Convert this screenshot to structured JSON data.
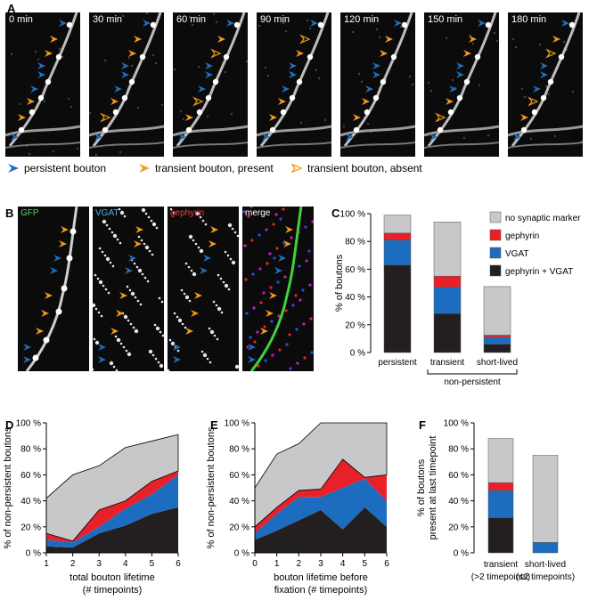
{
  "panel_letters": {
    "a": "A",
    "b": "B",
    "c": "C",
    "d": "D",
    "e": "E",
    "f": "F"
  },
  "panel_a": {
    "timepoints": [
      "0 min",
      "30 min",
      "60 min",
      "90 min",
      "120 min",
      "150 min",
      "180 min"
    ],
    "legend": [
      "persistent bouton",
      "transient bouton, present",
      "transient bouton, absent"
    ]
  },
  "panel_b": {
    "channels": [
      "GFP",
      "VGAT",
      "gephyrin",
      "merge"
    ]
  },
  "colors": {
    "persistent": "#1f6fbf",
    "transient": "#f39a1f",
    "gephyrin_vgat": "#231f20",
    "vgat": "#1c6cbf",
    "gephyrin": "#e8202a",
    "no_marker": "#c8c8ca"
  },
  "chart_data": [
    {
      "id": "C",
      "type": "bar",
      "stacked": true,
      "ylabel": "% of boutons",
      "ylim": [
        0,
        100
      ],
      "yticks": [
        "0 %",
        "20 %",
        "40 %",
        "60 %",
        "80 %",
        "100 %"
      ],
      "categories": [
        "persistent",
        "transient",
        "short-lived"
      ],
      "group_label": "non-persistent",
      "legend": [
        "no synaptic marker",
        "gephyrin",
        "VGAT",
        "gephyrin + VGAT"
      ],
      "series": [
        {
          "name": "gephyrin + VGAT",
          "values": [
            63,
            28,
            6
          ]
        },
        {
          "name": "VGAT",
          "values": [
            18,
            19,
            5
          ]
        },
        {
          "name": "gephyrin",
          "values": [
            5,
            8,
            1.5
          ]
        },
        {
          "name": "no synaptic marker",
          "values": [
            13,
            39,
            35
          ]
        }
      ]
    },
    {
      "id": "D",
      "type": "area",
      "stacked": true,
      "xlabel": "total bouton lifetime\n(# timepoints)",
      "xlabel_lines": [
        "total bouton lifetime",
        "(# timepoints)"
      ],
      "ylabel": "% of non-persistent boutons",
      "x": [
        1,
        2,
        3,
        4,
        5,
        6
      ],
      "xlim": [
        1,
        6
      ],
      "ylim": [
        0,
        100
      ],
      "yticks": [
        "0 %",
        "20 %",
        "40 %",
        "60 %",
        "80 %",
        "100 %"
      ],
      "xticks": [
        "1",
        "2",
        "3",
        "4",
        "5",
        "6"
      ],
      "series": [
        {
          "name": "gephyrin + VGAT",
          "values": [
            5,
            4,
            15,
            21,
            30,
            35
          ]
        },
        {
          "name": "VGAT",
          "values": [
            5,
            4,
            5,
            13,
            15,
            25
          ]
        },
        {
          "name": "gephyrin",
          "values": [
            5,
            1,
            13,
            6,
            10,
            3
          ]
        },
        {
          "name": "no synaptic marker",
          "values": [
            27,
            51,
            34,
            41,
            31,
            28
          ]
        }
      ]
    },
    {
      "id": "E",
      "type": "area",
      "stacked": true,
      "xlabel_lines": [
        "bouton lifetime before",
        "fixation (# timepoints)"
      ],
      "ylabel": "% of non-persistent boutons",
      "x": [
        0,
        1,
        2,
        3,
        4,
        5,
        6
      ],
      "xlim": [
        0,
        6
      ],
      "ylim": [
        0,
        100
      ],
      "yticks": [
        "0 %",
        "20 %",
        "40 %",
        "60 %",
        "80 %",
        "100 %"
      ],
      "xticks": [
        "0",
        "1",
        "2",
        "3",
        "4",
        "5",
        "6"
      ],
      "series": [
        {
          "name": "gephyrin + VGAT",
          "values": [
            10,
            17,
            25,
            33,
            18,
            35,
            20
          ]
        },
        {
          "name": "VGAT",
          "values": [
            5,
            13,
            18,
            10,
            32,
            22,
            20
          ]
        },
        {
          "name": "gephyrin",
          "values": [
            5,
            5,
            5,
            6,
            22,
            1,
            20
          ]
        },
        {
          "name": "no synaptic marker",
          "values": [
            30,
            41,
            36,
            51,
            28,
            42,
            40
          ]
        }
      ]
    },
    {
      "id": "F",
      "type": "bar",
      "stacked": true,
      "ylabel_lines": [
        "% of boutons",
        "present at last timepoint"
      ],
      "ylim": [
        0,
        100
      ],
      "yticks": [
        "0 %",
        "20 %",
        "40 %",
        "60 %",
        "80 %",
        "100 %"
      ],
      "categories": [
        "transient",
        "short-lived"
      ],
      "category_sublabels": [
        "(>2 timepoints)",
        "(≤2 timepoints)"
      ],
      "series": [
        {
          "name": "gephyrin + VGAT",
          "values": [
            27,
            0
          ]
        },
        {
          "name": "VGAT",
          "values": [
            21,
            8
          ]
        },
        {
          "name": "gephyrin",
          "values": [
            6,
            0
          ]
        },
        {
          "name": "no synaptic marker",
          "values": [
            34,
            67
          ]
        }
      ]
    }
  ]
}
